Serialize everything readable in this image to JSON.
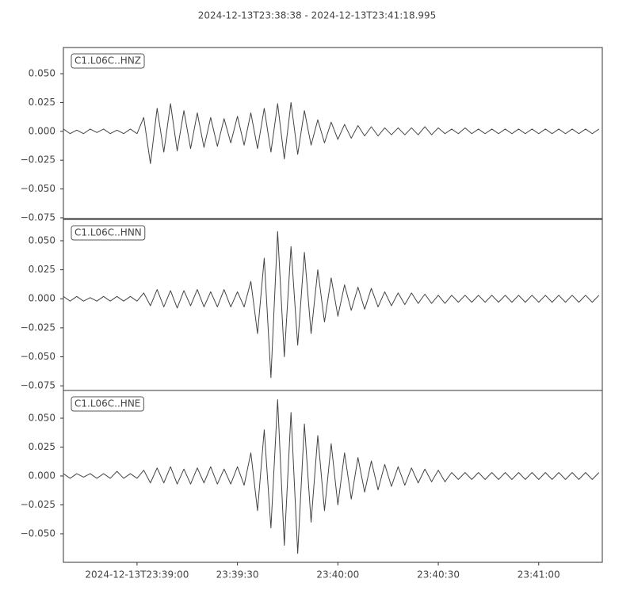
{
  "title": "2024-12-13T23:38:38  -  2024-12-13T23:41:18.995",
  "chart_data": [
    {
      "type": "line",
      "label": "C1.L06C..HNZ",
      "color": "#444444",
      "xlim": [
        0,
        161
      ],
      "ylim": [
        -0.0757,
        0.0727
      ],
      "yticks": [
        {
          "value": 0.05,
          "label": "0.050"
        },
        {
          "value": 0.025,
          "label": "0.025"
        },
        {
          "value": 0,
          "label": "0.000"
        },
        {
          "value": -0.025,
          "label": "−0.025"
        },
        {
          "value": -0.05,
          "label": "−0.050"
        },
        {
          "value": -0.075,
          "label": "−0.075"
        }
      ],
      "x": [
        0,
        2,
        4,
        6,
        8,
        10,
        12,
        14,
        16,
        18,
        20,
        22,
        24,
        26,
        28,
        30,
        32,
        34,
        36,
        38,
        40,
        42,
        44,
        46,
        48,
        50,
        52,
        54,
        56,
        58,
        60,
        62,
        64,
        66,
        68,
        70,
        72,
        74,
        76,
        78,
        80,
        82,
        84,
        86,
        88,
        90,
        92,
        94,
        96,
        98,
        100,
        102,
        104,
        106,
        108,
        110,
        112,
        114,
        116,
        118,
        120,
        122,
        124,
        126,
        128,
        130,
        132,
        134,
        136,
        138,
        140,
        142,
        144,
        146,
        148,
        150,
        152,
        154,
        156,
        158,
        160
      ],
      "values": [
        0.002,
        -0.002,
        0.001,
        -0.002,
        0.002,
        -0.001,
        0.002,
        -0.002,
        0.001,
        -0.002,
        0.002,
        -0.002,
        0.012,
        -0.028,
        0.02,
        -0.018,
        0.024,
        -0.017,
        0.018,
        -0.015,
        0.016,
        -0.014,
        0.012,
        -0.013,
        0.011,
        -0.01,
        0.013,
        -0.012,
        0.016,
        -0.015,
        0.02,
        -0.018,
        0.024,
        -0.024,
        0.025,
        -0.02,
        0.018,
        -0.012,
        0.01,
        -0.01,
        0.008,
        -0.007,
        0.006,
        -0.006,
        0.005,
        -0.004,
        0.004,
        -0.004,
        0.003,
        -0.003,
        0.003,
        -0.003,
        0.003,
        -0.003,
        0.004,
        -0.003,
        0.003,
        -0.002,
        0.002,
        -0.002,
        0.003,
        -0.002,
        0.002,
        -0.002,
        0.002,
        -0.002,
        0.002,
        -0.002,
        0.002,
        -0.002,
        0.002,
        -0.002,
        0.002,
        -0.002,
        0.002,
        -0.002,
        0.002,
        -0.002,
        0.002,
        -0.002,
        0.002
      ]
    },
    {
      "type": "line",
      "label": "C1.L06C..HNN",
      "color": "#444444",
      "xlim": [
        0,
        161
      ],
      "ylim": [
        -0.079,
        0.0684
      ],
      "yticks": [
        {
          "value": 0.05,
          "label": "0.050"
        },
        {
          "value": 0.025,
          "label": "0.025"
        },
        {
          "value": 0,
          "label": "0.000"
        },
        {
          "value": -0.025,
          "label": "−0.025"
        },
        {
          "value": -0.05,
          "label": "−0.050"
        },
        {
          "value": -0.075,
          "label": "−0.075"
        }
      ],
      "x": [
        0,
        2,
        4,
        6,
        8,
        10,
        12,
        14,
        16,
        18,
        20,
        22,
        24,
        26,
        28,
        30,
        32,
        34,
        36,
        38,
        40,
        42,
        44,
        46,
        48,
        50,
        52,
        54,
        56,
        58,
        60,
        62,
        64,
        66,
        68,
        70,
        72,
        74,
        76,
        78,
        80,
        82,
        84,
        86,
        88,
        90,
        92,
        94,
        96,
        98,
        100,
        102,
        104,
        106,
        108,
        110,
        112,
        114,
        116,
        118,
        120,
        122,
        124,
        126,
        128,
        130,
        132,
        134,
        136,
        138,
        140,
        142,
        144,
        146,
        148,
        150,
        152,
        154,
        156,
        158,
        160
      ],
      "values": [
        0.002,
        -0.002,
        0.002,
        -0.002,
        0.001,
        -0.002,
        0.002,
        -0.002,
        0.002,
        -0.002,
        0.002,
        -0.002,
        0.005,
        -0.006,
        0.008,
        -0.007,
        0.007,
        -0.008,
        0.007,
        -0.006,
        0.008,
        -0.007,
        0.006,
        -0.007,
        0.008,
        -0.007,
        0.006,
        -0.007,
        0.015,
        -0.03,
        0.035,
        -0.068,
        0.058,
        -0.05,
        0.045,
        -0.04,
        0.04,
        -0.03,
        0.025,
        -0.02,
        0.018,
        -0.015,
        0.012,
        -0.01,
        0.01,
        -0.009,
        0.009,
        -0.007,
        0.006,
        -0.006,
        0.005,
        -0.005,
        0.005,
        -0.004,
        0.004,
        -0.004,
        0.003,
        -0.004,
        0.003,
        -0.003,
        0.003,
        -0.003,
        0.003,
        -0.003,
        0.003,
        -0.003,
        0.003,
        -0.003,
        0.003,
        -0.003,
        0.003,
        -0.003,
        0.003,
        -0.003,
        0.003,
        -0.003,
        0.003,
        -0.003,
        0.003,
        -0.003,
        0.003
      ]
    },
    {
      "type": "line",
      "label": "C1.L06C..HNE",
      "color": "#444444",
      "xlim": [
        0,
        161
      ],
      "ylim": [
        -0.0747,
        0.074
      ],
      "yticks": [
        {
          "value": 0.05,
          "label": "0.050"
        },
        {
          "value": 0.025,
          "label": "0.025"
        },
        {
          "value": 0,
          "label": "0.000"
        },
        {
          "value": -0.025,
          "label": "−0.025"
        },
        {
          "value": -0.05,
          "label": "−0.050"
        }
      ],
      "xticks": [
        {
          "value": 22,
          "label": "2024-12-13T23:39:00"
        },
        {
          "value": 52,
          "label": "23:39:30"
        },
        {
          "value": 82,
          "label": "23:40:00"
        },
        {
          "value": 112,
          "label": "23:40:30"
        },
        {
          "value": 142,
          "label": "23:41:00"
        }
      ],
      "x": [
        0,
        2,
        4,
        6,
        8,
        10,
        12,
        14,
        16,
        18,
        20,
        22,
        24,
        26,
        28,
        30,
        32,
        34,
        36,
        38,
        40,
        42,
        44,
        46,
        48,
        50,
        52,
        54,
        56,
        58,
        60,
        62,
        64,
        66,
        68,
        70,
        72,
        74,
        76,
        78,
        80,
        82,
        84,
        86,
        88,
        90,
        92,
        94,
        96,
        98,
        100,
        102,
        104,
        106,
        108,
        110,
        112,
        114,
        116,
        118,
        120,
        122,
        124,
        126,
        128,
        130,
        132,
        134,
        136,
        138,
        140,
        142,
        144,
        146,
        148,
        150,
        152,
        154,
        156,
        158,
        160
      ],
      "values": [
        0.002,
        -0.002,
        0.002,
        -0.001,
        0.002,
        -0.002,
        0.002,
        -0.002,
        0.004,
        -0.002,
        0.002,
        -0.002,
        0.005,
        -0.006,
        0.007,
        -0.006,
        0.008,
        -0.007,
        0.006,
        -0.007,
        0.007,
        -0.006,
        0.008,
        -0.007,
        0.006,
        -0.007,
        0.008,
        -0.008,
        0.02,
        -0.03,
        0.04,
        -0.045,
        0.066,
        -0.06,
        0.055,
        -0.067,
        0.045,
        -0.04,
        0.035,
        -0.03,
        0.028,
        -0.025,
        0.02,
        -0.02,
        0.016,
        -0.014,
        0.013,
        -0.012,
        0.01,
        -0.009,
        0.008,
        -0.008,
        0.007,
        -0.006,
        0.006,
        -0.005,
        0.005,
        -0.005,
        0.003,
        -0.003,
        0.003,
        -0.003,
        0.003,
        -0.003,
        0.003,
        -0.003,
        0.003,
        -0.003,
        0.003,
        -0.003,
        0.003,
        -0.003,
        0.003,
        -0.003,
        0.003,
        -0.003,
        0.003,
        -0.003,
        0.003,
        -0.003,
        0.003
      ]
    }
  ]
}
